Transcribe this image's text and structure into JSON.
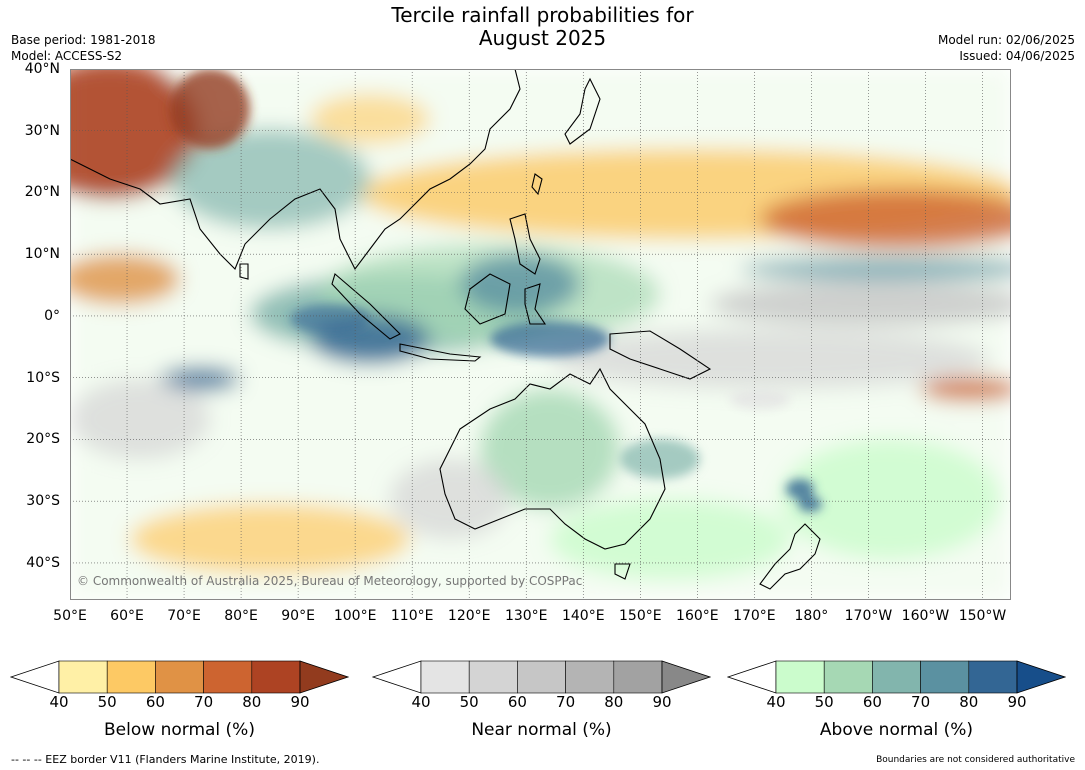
{
  "title_line1": "Tercile rainfall probabilities for",
  "title_line2": "August 2025",
  "meta_left": [
    "Base period: 1981-2018",
    "Model: ACCESS-S2"
  ],
  "meta_right": [
    "Model run: 02/06/2025",
    "Issued: 04/06/2025"
  ],
  "map": {
    "lon_range": [
      50,
      215
    ],
    "lat_range": [
      -46,
      40
    ],
    "lat_labels": [
      "40°N",
      "30°N",
      "20°N",
      "10°N",
      "0°",
      "10°S",
      "20°S",
      "30°S",
      "40°S"
    ],
    "lon_labels": [
      "50°E",
      "60°E",
      "70°E",
      "80°E",
      "90°E",
      "100°E",
      "110°E",
      "120°E",
      "130°E",
      "140°E",
      "150°E",
      "160°E",
      "170°E",
      "180°",
      "170°W",
      "160°W",
      "150°W"
    ],
    "copyright": "© Commonwealth of Australia 2025, Bureau of Meteorology, supported by COSPPac"
  },
  "colorbars": [
    {
      "title": "Below normal (%)",
      "ticks": [
        "40",
        "50",
        "60",
        "70",
        "80",
        "90"
      ],
      "colors": [
        "#fff0a6",
        "#fdc964",
        "#e09245",
        "#cd6430",
        "#ad4323"
      ],
      "extend_color": "#923b1e"
    },
    {
      "title": "Near normal (%)",
      "ticks": [
        "40",
        "50",
        "60",
        "70",
        "80",
        "90"
      ],
      "colors": [
        "#e4e4e4",
        "#d4d4d4",
        "#c6c6c6",
        "#b4b4b4",
        "#a2a2a2"
      ],
      "extend_color": "#888888"
    },
    {
      "title": "Above normal (%)",
      "ticks": [
        "40",
        "50",
        "60",
        "70",
        "80",
        "90"
      ],
      "colors": [
        "#cbfccc",
        "#a6d8b4",
        "#82b5ad",
        "#5b91a1",
        "#336694"
      ],
      "extend_color": "#174e8a"
    }
  ],
  "footer_left": "--  --  -- EEZ border V11 (Flanders Marine Institute, 2019).",
  "footer_right": "Boundaries are not considered authoritative"
}
